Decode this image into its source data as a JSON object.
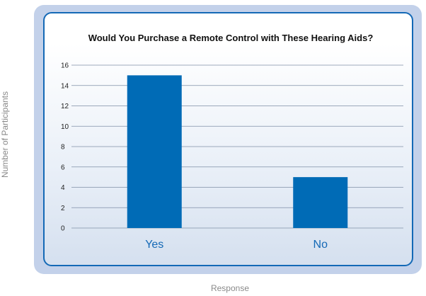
{
  "chart_data": {
    "type": "bar",
    "title": "Would You Purchase a Remote Control with These Hearing Aids?",
    "xlabel": "Response",
    "ylabel": "Number of Participants",
    "categories": [
      "Yes",
      "No"
    ],
    "values": [
      15,
      5
    ],
    "ylim": [
      0,
      16
    ],
    "yticks": [
      0,
      2,
      4,
      6,
      8,
      10,
      12,
      14,
      16
    ],
    "grid": true,
    "bar_color": "#006bb6",
    "frame_color": "#c3d1ea",
    "border_color": "#1469b6"
  }
}
